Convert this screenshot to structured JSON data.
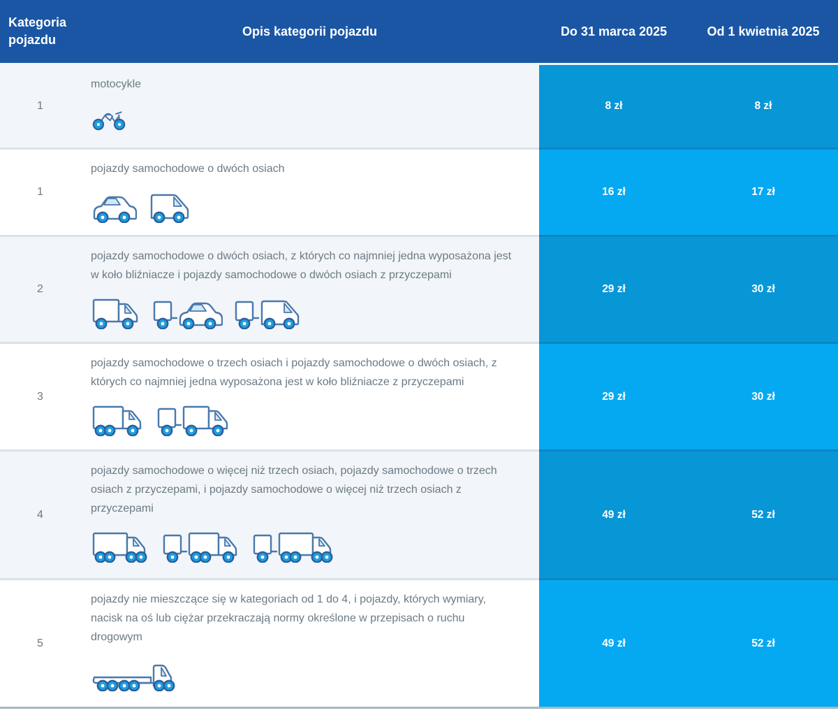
{
  "table": {
    "header": {
      "col_category": "Kategoria pojazdu",
      "col_description": "Opis kategorii pojazdu",
      "col_price_before": "Do 31 marca 2025",
      "col_price_after": "Od 1 kwietnia 2025"
    },
    "rows": [
      {
        "category": "1",
        "description": "motocykle",
        "icons": [
          "motorcycle"
        ],
        "price_before": "8 zł",
        "price_after": "8 zł"
      },
      {
        "category": "1",
        "description": "pojazdy samochodowe o dwóch osiach",
        "icons": [
          "car",
          "delivery-van"
        ],
        "price_before": "16 zł",
        "price_after": "17 zł"
      },
      {
        "category": "2",
        "description": "pojazdy samochodowe o dwóch osiach, z których co najmniej jedna wyposażona jest w koło bliźniacze i pojazdy samochodowe o dwóch osiach z przyczepami",
        "icons": [
          "box-truck-2-axle",
          "car-with-trailer",
          "van-with-trailer"
        ],
        "price_before": "29 zł",
        "price_after": "30 zł"
      },
      {
        "category": "3",
        "description": "pojazdy samochodowe o trzech osiach i pojazdy samochodowe o dwóch osiach, z których co najmniej jedna wyposażona jest w koło bliźniacze z przyczepami",
        "icons": [
          "box-truck-3-axle",
          "truck-2-axle-with-trailer"
        ],
        "price_before": "29 zł",
        "price_after": "30 zł"
      },
      {
        "category": "4",
        "description": "pojazdy samochodowe o więcej niż trzech osiach, pojazdy samochodowe o trzech osiach z przyczepami, i pojazdy samochodowe o więcej niż trzech osiach z przyczepami",
        "icons": [
          "box-truck-4-axle",
          "truck-3-axle-with-trailer",
          "truck-4-axle-with-trailer"
        ],
        "price_before": "49 zł",
        "price_after": "52 zł"
      },
      {
        "category": "5",
        "description": "pojazdy nie mieszczące się w kategoriach od 1 do 4, i pojazdy, których wymiary, nacisk na oś lub ciężar przekraczają normy określone w przepisach o ruchu drogowym",
        "icons": [
          "oversize-flatbed-truck"
        ],
        "price_before": "49 zł",
        "price_after": "52 zł"
      }
    ]
  },
  "colors": {
    "header_bg": "#1a56a4",
    "price_cell_dark": "#0796d6",
    "price_cell_light": "#05a9f2",
    "row_alt_bg": "#f2f5f9",
    "row_bg": "#ffffff",
    "text_gray": "#6b7a85",
    "icon_outline": "#4a78ab",
    "icon_wheel": "#1e9ede",
    "bottom_line": "#a4b9bd"
  }
}
